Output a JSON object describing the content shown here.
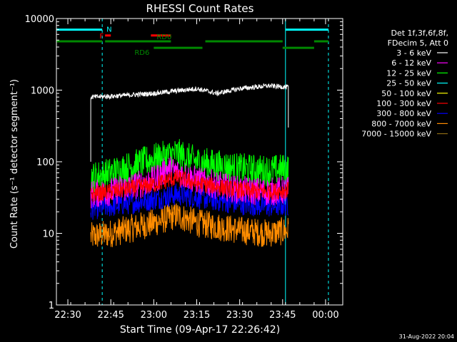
{
  "chart_data": {
    "type": "line",
    "title": "RHESSI Count Rates",
    "xlabel": "Start Time (09-Apr-17 22:26:42)",
    "ylabel": "Count Rate (s⁻¹ detector segment⁻¹)",
    "yscale": "log",
    "ylim": [
      1,
      10000
    ],
    "xlim": [
      "22:26",
      "00:06"
    ],
    "x_ticks": [
      "22:30",
      "22:45",
      "23:00",
      "23:15",
      "23:30",
      "23:45",
      "00:00"
    ],
    "y_ticks": [
      "1",
      "10",
      "100",
      "1000",
      "10000"
    ],
    "legend_header": [
      "Det 1f,3f,6f,8f,",
      "FDecim 5, Att 0"
    ],
    "legend_position": "right",
    "date_stamp": "31-Aug-2022 20:04",
    "series": [
      {
        "name": "3 - 6 keV",
        "color": "#ffffff",
        "x": [
          "22:38",
          "22:45",
          "23:00",
          "23:15",
          "23:22",
          "23:30",
          "23:40",
          "23:47"
        ],
        "values": [
          800,
          820,
          900,
          1050,
          900,
          1050,
          1150,
          1100
        ]
      },
      {
        "name": "6 - 12 keV",
        "color": "#ff00ff",
        "x": [
          "22:38",
          "22:45",
          "23:00",
          "23:05",
          "23:15",
          "23:30",
          "23:40",
          "23:47"
        ],
        "values": [
          35,
          38,
          55,
          80,
          55,
          40,
          38,
          40
        ]
      },
      {
        "name": "12 - 25 keV",
        "color": "#00ff00",
        "x": [
          "22:38",
          "22:45",
          "23:00",
          "23:08",
          "23:15",
          "23:30",
          "23:40",
          "23:47"
        ],
        "values": [
          60,
          70,
          110,
          130,
          100,
          80,
          75,
          80
        ]
      },
      {
        "name": "25 - 50 keV",
        "color": "#00ffff",
        "x": [],
        "values": []
      },
      {
        "name": "50 - 100 keV",
        "color": "#ffff00",
        "x": [],
        "values": []
      },
      {
        "name": "100 - 300 keV",
        "color": "#ff0000",
        "x": [
          "22:38",
          "22:45",
          "23:00",
          "23:08",
          "23:15",
          "23:30",
          "23:40",
          "23:47"
        ],
        "values": [
          35,
          38,
          48,
          60,
          50,
          40,
          38,
          40
        ]
      },
      {
        "name": "300 - 800 keV",
        "color": "#0000ff",
        "x": [
          "22:38",
          "22:45",
          "23:00",
          "23:08",
          "23:15",
          "23:30",
          "23:40",
          "23:47"
        ],
        "values": [
          22,
          24,
          30,
          35,
          32,
          26,
          24,
          25
        ]
      },
      {
        "name": "800 - 7000 keV",
        "color": "#ff8c00",
        "x": [
          "22:38",
          "22:45",
          "23:00",
          "23:08",
          "23:15",
          "23:30",
          "23:40",
          "23:47"
        ],
        "values": [
          9,
          10,
          14,
          18,
          14,
          11,
          10,
          11
        ]
      },
      {
        "name": "7000 - 15000 keV",
        "color": "#8b6914",
        "x": [],
        "values": []
      }
    ],
    "markers": [
      {
        "label": "",
        "color": "#00ffff",
        "level": 7000,
        "from": "22:26",
        "to": "22:42"
      },
      {
        "label": "N",
        "color": "#00ffff",
        "level": 7000,
        "from": "22:42",
        "to": "22:42"
      },
      {
        "label": "",
        "color": "#00ffff",
        "level": 7000,
        "from": "23:46",
        "to": "00:01"
      },
      {
        "label": "F",
        "color": "#ff0000",
        "level": 5800,
        "from": "22:43",
        "to": "22:45"
      },
      {
        "label": "",
        "color": "#ff0000",
        "level": 5800,
        "from": "22:59",
        "to": "23:06"
      },
      {
        "label": "",
        "color": "#008800",
        "level": 4800,
        "from": "22:26",
        "to": "22:42"
      },
      {
        "label": "RD0",
        "color": "#008800",
        "level": 4800,
        "from": "22:43",
        "to": "23:06"
      },
      {
        "label": "RD6",
        "color": "#008800",
        "level": 3900,
        "from": "23:00",
        "to": "23:17"
      },
      {
        "label": "",
        "color": "#008800",
        "level": 4800,
        "from": "23:18",
        "to": "23:45"
      },
      {
        "label": "",
        "color": "#008800",
        "level": 3900,
        "from": "23:45",
        "to": "23:56"
      },
      {
        "label": "",
        "color": "#008800",
        "level": 4800,
        "from": "23:56",
        "to": "00:01"
      }
    ],
    "vlines": [
      {
        "time": "22:26",
        "color": "#00ffff",
        "style": "solid"
      },
      {
        "time": "22:42",
        "color": "#00ffff",
        "style": "dashed"
      },
      {
        "time": "23:46",
        "color": "#00ffff",
        "style": "solid"
      },
      {
        "time": "00:01",
        "color": "#00ffff",
        "style": "dashed"
      }
    ]
  }
}
